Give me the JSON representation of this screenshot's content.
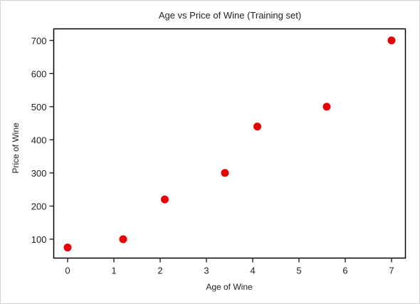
{
  "chart_data": {
    "type": "scatter",
    "title": "Age vs Price of Wine (Training set)",
    "xlabel": "Age of Wine",
    "ylabel": "Price of Wine",
    "xlim": [
      -0.3,
      7.3
    ],
    "ylim": [
      43,
      735
    ],
    "xticks": [
      0,
      1,
      2,
      3,
      4,
      5,
      6,
      7
    ],
    "yticks": [
      100,
      200,
      300,
      400,
      500,
      600,
      700
    ],
    "grid": false,
    "point_color": "#e60000",
    "x": [
      0,
      1.2,
      2.1,
      3.4,
      4.1,
      5.6,
      7
    ],
    "y": [
      75,
      100,
      220,
      300,
      440,
      500,
      700
    ]
  }
}
